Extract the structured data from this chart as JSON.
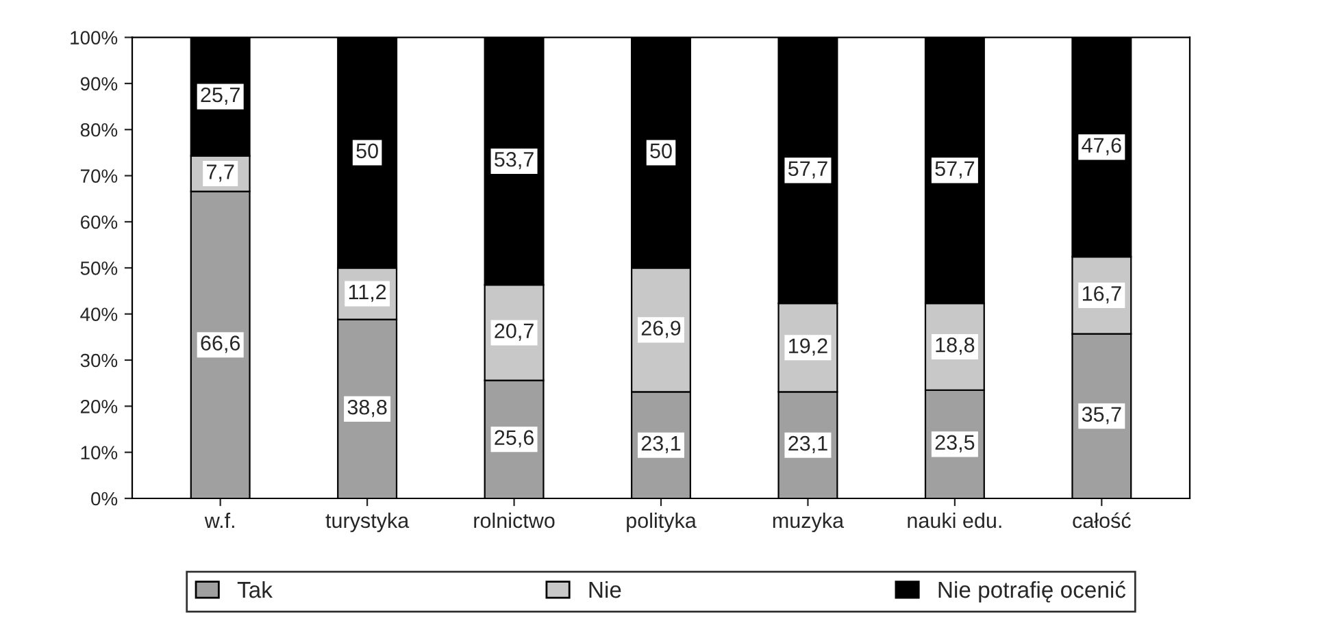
{
  "chart_data": {
    "type": "bar",
    "stacked": true,
    "categories": [
      "w.f.",
      "turystyka",
      "rolnictwo",
      "polityka",
      "muzyka",
      "nauki edu.",
      "całość"
    ],
    "series": [
      {
        "name": "Tak",
        "color": "#a0a0a0",
        "values": [
          66.6,
          38.8,
          25.6,
          23.1,
          23.1,
          23.5,
          35.7
        ],
        "value_labels": [
          "66,6",
          "38,8",
          "25,6",
          "23,1",
          "23,1",
          "23,5",
          "35,7"
        ]
      },
      {
        "name": "Nie",
        "color": "#c8c8c8",
        "values": [
          7.7,
          11.2,
          20.7,
          26.9,
          19.2,
          18.8,
          16.7
        ],
        "value_labels": [
          "7,7",
          "11,2",
          "20,7",
          "26,9",
          "19,2",
          "18,8",
          "16,7"
        ]
      },
      {
        "name": "Nie potrafię ocenić",
        "color": "#000000",
        "values": [
          25.7,
          50,
          53.7,
          50,
          57.7,
          57.7,
          47.6
        ],
        "value_labels": [
          "25,7",
          "50",
          "53,7",
          "50",
          "57,7",
          "57,7",
          "47,6"
        ]
      }
    ],
    "ylim": [
      0,
      100
    ],
    "yticks": [
      {
        "value": 0,
        "label": "0%"
      },
      {
        "value": 10,
        "label": "10%"
      },
      {
        "value": 20,
        "label": "20%"
      },
      {
        "value": 30,
        "label": "30%"
      },
      {
        "value": 40,
        "label": "40%"
      },
      {
        "value": 50,
        "label": "50%"
      },
      {
        "value": 60,
        "label": "60%"
      },
      {
        "value": 70,
        "label": "70%"
      },
      {
        "value": 80,
        "label": "80%"
      },
      {
        "value": 90,
        "label": "90%"
      },
      {
        "value": 100,
        "label": "100%"
      }
    ],
    "grid": false,
    "legend": "bottom"
  }
}
